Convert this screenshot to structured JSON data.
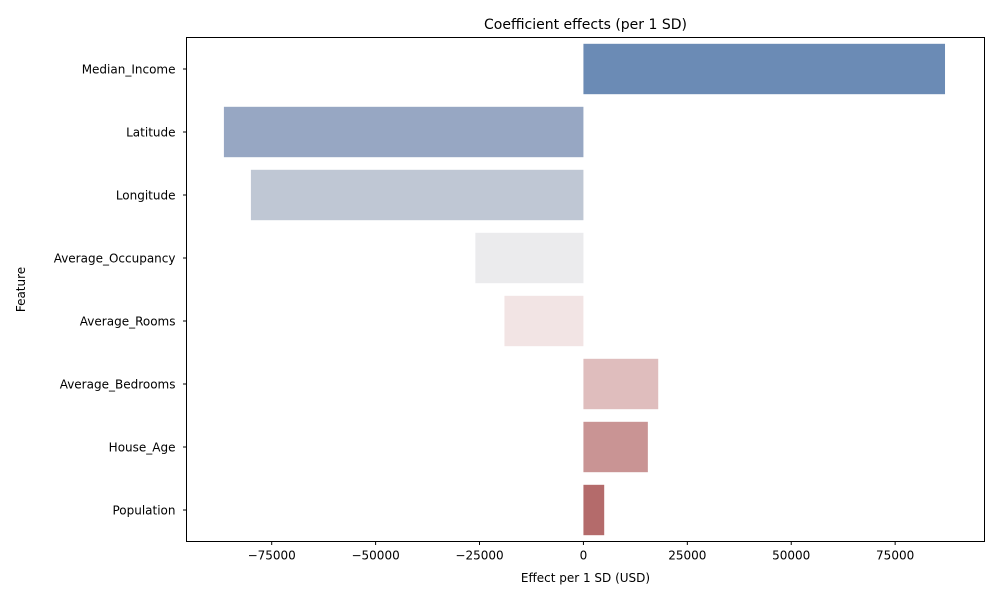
{
  "chart_data": {
    "type": "bar",
    "orientation": "horizontal",
    "title": "Coefficient effects (per 1 SD)",
    "xlabel": "Effect per 1 SD (USD)",
    "ylabel": "Feature",
    "xlim": [
      -95500,
      96500
    ],
    "xticks": [
      -75000,
      -50000,
      -25000,
      0,
      25000,
      50000,
      75000
    ],
    "xtick_labels": [
      "−75000",
      "−50000",
      "−25000",
      "0",
      "25000",
      "50000",
      "75000"
    ],
    "grid": false,
    "categories": [
      "Median_Income",
      "Latitude",
      "Longitude",
      "Average_Occupancy",
      "Average_Rooms",
      "Average_Bedrooms",
      "House_Age",
      "Population"
    ],
    "values": [
      87000,
      -86500,
      -80000,
      -26000,
      -19000,
      18000,
      15500,
      5000
    ],
    "colors": [
      "#6b8bb5",
      "#97a7c3",
      "#bfc7d4",
      "#ebebed",
      "#f2e4e4",
      "#dfbdbd",
      "#c99494",
      "#b46b6b"
    ]
  }
}
